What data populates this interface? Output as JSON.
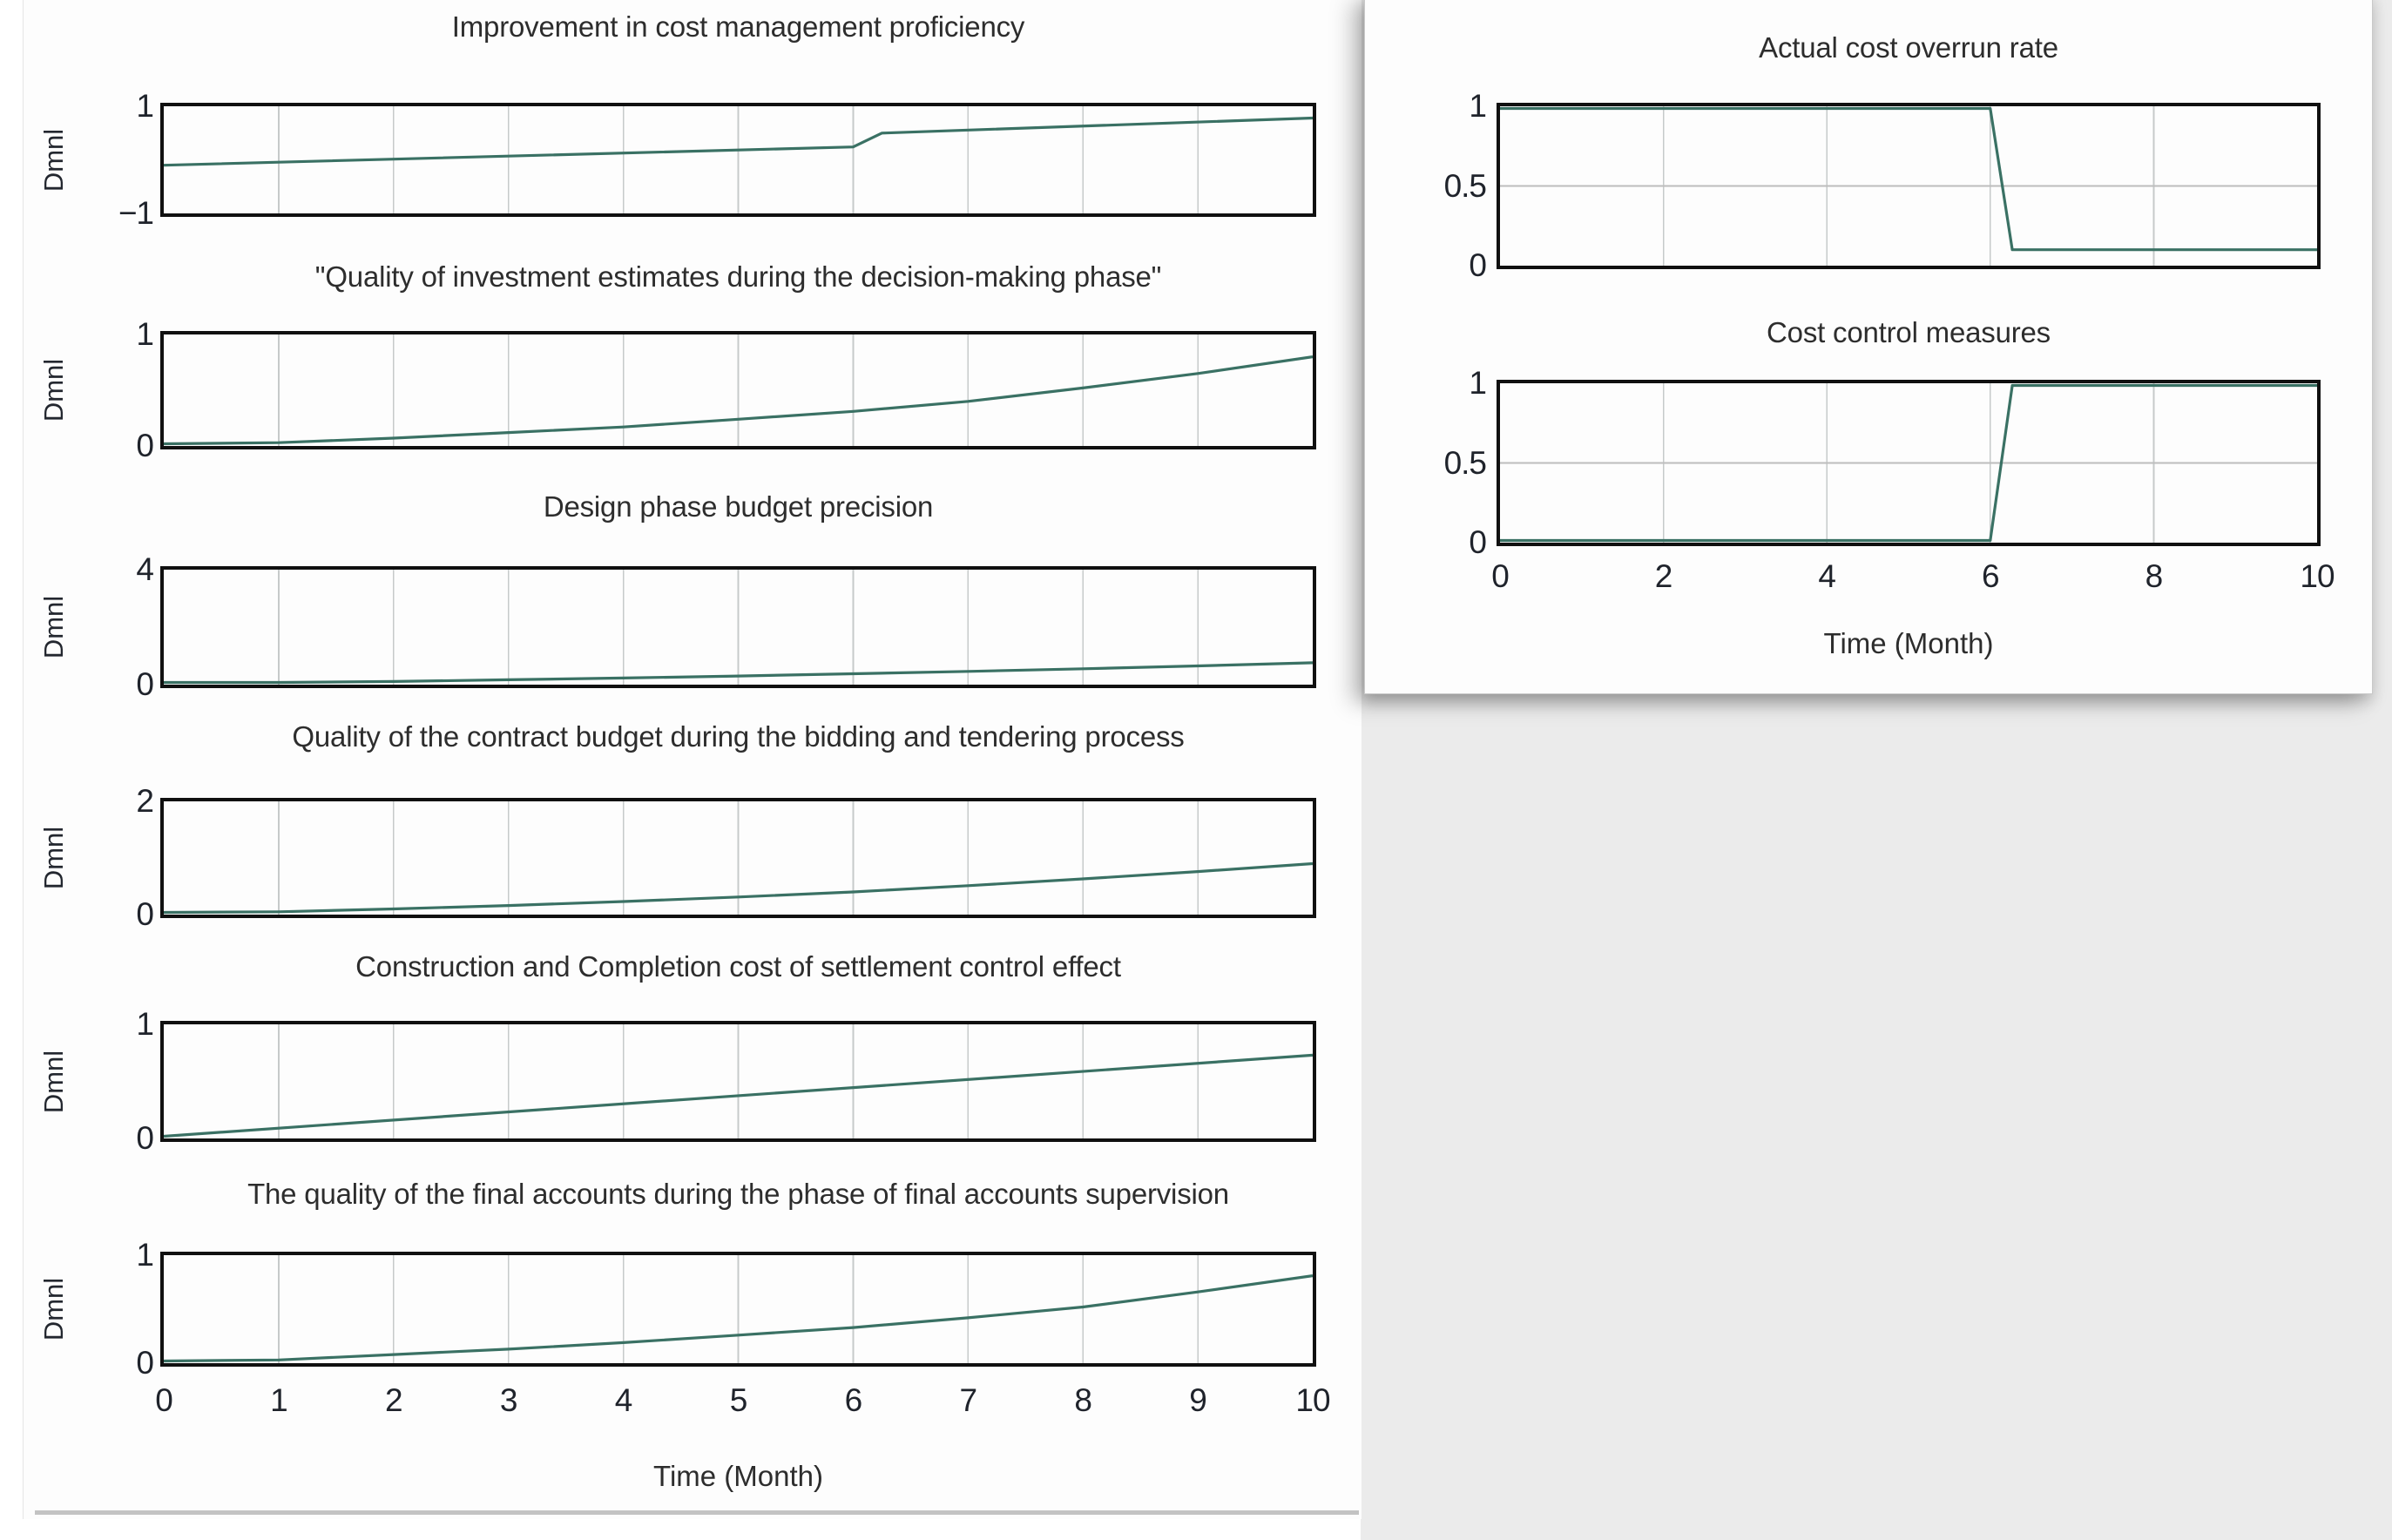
{
  "colors": {
    "line": "#3a7164",
    "grid": "#c6caca",
    "grid_half": "#bdbdbd",
    "box_border": "#101010",
    "desktop_bg": "#ebebeb",
    "panel_bg": "#fdfdfd",
    "divider": "#c3c3c3"
  },
  "left_panel": {
    "x_axis_label": "Time (Month)",
    "x_ticks": [
      "0",
      "1",
      "2",
      "3",
      "4",
      "5",
      "6",
      "7",
      "8",
      "9",
      "10"
    ],
    "y_unit": "Dmnl"
  },
  "right_panel": {
    "x_axis_label": "Time (Month)",
    "x_ticks": [
      "0",
      "2",
      "4",
      "6",
      "8",
      "10"
    ]
  },
  "chart_data": [
    {
      "type": "line",
      "panel": "left",
      "title": "Improvement in cost management proficiency",
      "ylabel": "Dmnl",
      "xlabel": "",
      "xlim": [
        0,
        10
      ],
      "ylim": [
        -1,
        1
      ],
      "yticks": [
        {
          "v": 1,
          "label": "1"
        },
        {
          "v": -1,
          "label": "−1"
        }
      ],
      "grid_x": [
        1,
        2,
        3,
        4,
        5,
        6,
        7,
        8,
        9
      ],
      "grid_y": [],
      "x": [
        0,
        6,
        6.25,
        10
      ],
      "y": [
        -0.1,
        0.24,
        0.5,
        0.78
      ]
    },
    {
      "type": "line",
      "panel": "left",
      "title": "\"Quality of investment estimates during the decision-making phase\"",
      "ylabel": "Dmnl",
      "xlabel": "",
      "xlim": [
        0,
        10
      ],
      "ylim": [
        0,
        1
      ],
      "yticks": [
        {
          "v": 1,
          "label": "1"
        },
        {
          "v": 0,
          "label": "0"
        }
      ],
      "grid_x": [
        1,
        2,
        3,
        4,
        5,
        6,
        7,
        8,
        9
      ],
      "grid_y": [],
      "x": [
        0,
        1,
        2,
        3,
        4,
        5,
        6,
        7,
        8,
        9,
        10
      ],
      "y": [
        0.005,
        0.03,
        0.07,
        0.12,
        0.17,
        0.24,
        0.31,
        0.4,
        0.52,
        0.65,
        0.8
      ]
    },
    {
      "type": "line",
      "panel": "left",
      "title": "Design phase budget precision",
      "ylabel": "Dmnl",
      "xlabel": "",
      "xlim": [
        0,
        10
      ],
      "ylim": [
        0,
        4
      ],
      "yticks": [
        {
          "v": 4,
          "label": "4"
        },
        {
          "v": 0,
          "label": "0"
        }
      ],
      "grid_x": [
        1,
        2,
        3,
        4,
        5,
        6,
        7,
        8,
        9
      ],
      "grid_y": [],
      "x": [
        0,
        1,
        2,
        3,
        4,
        5,
        6,
        7,
        8,
        9,
        10
      ],
      "y": [
        0.02,
        0.06,
        0.11,
        0.17,
        0.23,
        0.3,
        0.38,
        0.46,
        0.55,
        0.65,
        0.76
      ]
    },
    {
      "type": "line",
      "panel": "left",
      "title": "Quality of the contract budget during the bidding and tendering process",
      "ylabel": "Dmnl",
      "xlabel": "",
      "xlim": [
        0,
        10
      ],
      "ylim": [
        0,
        2
      ],
      "yticks": [
        {
          "v": 2,
          "label": "2"
        },
        {
          "v": 0,
          "label": "0"
        }
      ],
      "grid_x": [
        1,
        2,
        3,
        4,
        5,
        6,
        7,
        8,
        9
      ],
      "grid_y": [],
      "x": [
        0,
        1,
        2,
        3,
        4,
        5,
        6,
        7,
        8,
        9,
        10
      ],
      "y": [
        0.01,
        0.05,
        0.1,
        0.16,
        0.23,
        0.31,
        0.4,
        0.51,
        0.63,
        0.76,
        0.9
      ]
    },
    {
      "type": "line",
      "panel": "left",
      "title": "Construction and Completion cost of settlement control effect",
      "ylabel": "Dmnl",
      "xlabel": "",
      "xlim": [
        0,
        10
      ],
      "ylim": [
        0,
        1
      ],
      "yticks": [
        {
          "v": 1,
          "label": "1"
        },
        {
          "v": 0,
          "label": "0"
        }
      ],
      "grid_x": [
        1,
        2,
        3,
        4,
        5,
        6,
        7,
        8,
        9
      ],
      "grid_y": [],
      "x": [
        0,
        10
      ],
      "y": [
        0.0,
        0.73
      ]
    },
    {
      "type": "line",
      "panel": "left",
      "title": "The quality of the final accounts during the phase of final accounts supervision",
      "ylabel": "Dmnl",
      "xlabel": "Time (Month)",
      "xlim": [
        0,
        10
      ],
      "ylim": [
        0,
        1
      ],
      "yticks": [
        {
          "v": 1,
          "label": "1"
        },
        {
          "v": 0,
          "label": "0"
        }
      ],
      "xticks": [
        {
          "v": 0,
          "label": "0"
        },
        {
          "v": 1,
          "label": "1"
        },
        {
          "v": 2,
          "label": "2"
        },
        {
          "v": 3,
          "label": "3"
        },
        {
          "v": 4,
          "label": "4"
        },
        {
          "v": 5,
          "label": "5"
        },
        {
          "v": 6,
          "label": "6"
        },
        {
          "v": 7,
          "label": "7"
        },
        {
          "v": 8,
          "label": "8"
        },
        {
          "v": 9,
          "label": "9"
        },
        {
          "v": 10,
          "label": "10"
        }
      ],
      "grid_x": [
        1,
        2,
        3,
        4,
        5,
        6,
        7,
        8,
        9
      ],
      "grid_y": [],
      "x": [
        0,
        1,
        2,
        3,
        4,
        5,
        6,
        7,
        8,
        9,
        10
      ],
      "y": [
        0.005,
        0.03,
        0.08,
        0.13,
        0.19,
        0.26,
        0.33,
        0.42,
        0.52,
        0.66,
        0.81
      ]
    },
    {
      "type": "line",
      "panel": "right",
      "title": "Actual cost overrun rate",
      "ylabel": "",
      "xlabel": "",
      "xlim": [
        0,
        10
      ],
      "ylim": [
        0,
        1
      ],
      "yticks": [
        {
          "v": 1,
          "label": "1"
        },
        {
          "v": 0.5,
          "label": "0.5"
        },
        {
          "v": 0,
          "label": "0"
        }
      ],
      "grid_x": [
        2,
        4,
        6,
        8
      ],
      "grid_y": [
        0.5
      ],
      "x": [
        0,
        6,
        6.27,
        10
      ],
      "y": [
        1,
        1,
        0.1,
        0.1
      ]
    },
    {
      "type": "line",
      "panel": "right",
      "title": "Cost control measures",
      "ylabel": "",
      "xlabel": "Time (Month)",
      "xlim": [
        0,
        10
      ],
      "ylim": [
        0,
        1
      ],
      "yticks": [
        {
          "v": 1,
          "label": "1"
        },
        {
          "v": 0.5,
          "label": "0.5"
        },
        {
          "v": 0,
          "label": "0"
        }
      ],
      "xticks": [
        {
          "v": 0,
          "label": "0"
        },
        {
          "v": 2,
          "label": "2"
        },
        {
          "v": 4,
          "label": "4"
        },
        {
          "v": 6,
          "label": "6"
        },
        {
          "v": 8,
          "label": "8"
        },
        {
          "v": 10,
          "label": "10"
        }
      ],
      "grid_x": [
        2,
        4,
        6,
        8
      ],
      "grid_y": [
        0.5
      ],
      "x": [
        0,
        6,
        6.27,
        10
      ],
      "y": [
        0,
        0,
        1,
        1
      ]
    }
  ]
}
